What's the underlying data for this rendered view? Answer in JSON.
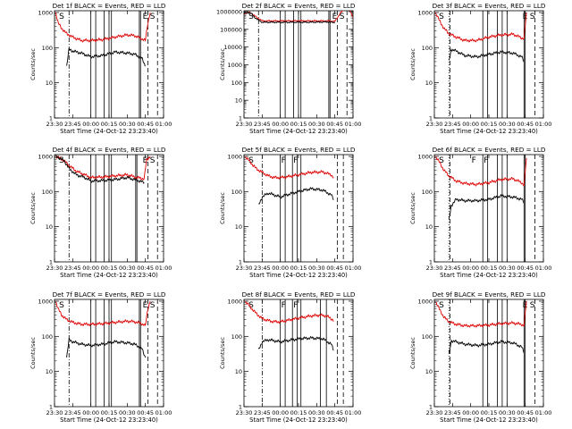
{
  "layout": {
    "x_tick_labels": [
      "23:30",
      "23:45",
      "00:00",
      "00:15",
      "00:30",
      "00:45",
      "01:00"
    ],
    "xlabel": "Start Time (24-Oct-12 23:23:40)",
    "ylabel": "Counts/sec"
  },
  "colors": {
    "events": "#000000",
    "lld": "#dd0000",
    "frame": "#000000"
  },
  "chart_data": [
    {
      "type": "line",
      "title": "Det 1f BLACK = Events, RED = LLD",
      "y_tick_labels": [
        "1",
        "10",
        "100",
        "1000"
      ],
      "ylim_log10": [
        0,
        3.05
      ],
      "xlim_minutes": [
        -30,
        60
      ],
      "x_ticks_minutes": [
        -30,
        -15,
        0,
        15,
        30,
        45,
        60
      ],
      "marker_letters": [
        {
          "t": -27,
          "text": "S"
        },
        {
          "t": 42,
          "text": "E"
        },
        {
          "t": 48,
          "text": "S"
        }
      ],
      "dashdot_lines": [
        -18
      ],
      "solid_lines": [
        0,
        4,
        11,
        15,
        17,
        40,
        41
      ],
      "dashed_lines": [
        47,
        55
      ],
      "series": [
        {
          "name": "LLD",
          "color": "#dd0000",
          "x": [
            -29,
            -27,
            -24,
            -20,
            -15,
            -8,
            0,
            10,
            20,
            30,
            36,
            42,
            45,
            47,
            49
          ],
          "values": [
            1000,
            500,
            350,
            250,
            200,
            160,
            160,
            170,
            200,
            230,
            220,
            180,
            160,
            500,
            1000
          ]
        },
        {
          "name": "Events",
          "color": "#000000",
          "x": [
            -20,
            -18,
            -15,
            -8,
            0,
            10,
            20,
            30,
            36,
            42,
            45
          ],
          "values": [
            30,
            90,
            80,
            70,
            55,
            60,
            75,
            70,
            65,
            50,
            30
          ]
        }
      ]
    },
    {
      "type": "line",
      "title": "Det 2f BLACK = Events, RED = LLD",
      "y_tick_labels": [
        "1",
        "10",
        "100",
        "1000",
        "10000",
        "100000",
        "1000000"
      ],
      "ylim_log10": [
        0,
        6.05
      ],
      "xlim_minutes": [
        -30,
        60
      ],
      "x_ticks_minutes": [
        -30,
        -15,
        0,
        15,
        30,
        45,
        60
      ],
      "marker_letters": [
        {
          "t": -27,
          "text": "S"
        },
        {
          "t": 42,
          "text": "E"
        },
        {
          "t": 48,
          "text": "S"
        }
      ],
      "dashdot_lines": [
        -18
      ],
      "solid_lines": [
        0,
        4,
        11,
        15,
        17,
        40,
        41
      ],
      "dashed_lines": [
        47,
        55
      ],
      "series": [
        {
          "name": "LLD",
          "color": "#dd0000",
          "x": [
            -30,
            -25,
            -20,
            -15,
            0,
            20,
            40,
            45,
            50,
            56,
            60
          ],
          "values": [
            800000,
            900000,
            500000,
            300000,
            300000,
            300000,
            300000,
            280000,
            900000,
            2000000,
            500000
          ]
        },
        {
          "name": "Events",
          "color": "#000000",
          "x": [
            -30,
            -25,
            -20,
            -15,
            0,
            20,
            40,
            45
          ],
          "values": [
            800000,
            900000,
            400000,
            250000,
            250000,
            250000,
            260000,
            240000
          ]
        }
      ]
    },
    {
      "type": "line",
      "title": "Det 3f BLACK = Events, RED = LLD",
      "y_tick_labels": [
        "1",
        "10",
        "100",
        "1000"
      ],
      "ylim_log10": [
        0,
        3.05
      ],
      "xlim_minutes": [
        -30,
        60
      ],
      "x_ticks_minutes": [
        -30,
        -15,
        0,
        15,
        30,
        45,
        60
      ],
      "marker_letters": [
        {
          "t": -27,
          "text": "S"
        },
        {
          "t": 42,
          "text": "E"
        },
        {
          "t": 48,
          "text": "S"
        }
      ],
      "dashdot_lines": [],
      "solid_lines": [
        10,
        14,
        22,
        26,
        30,
        44,
        45
      ],
      "dashed_lines": [
        -17,
        53
      ],
      "dotted_lines": [
        -18
      ],
      "series": [
        {
          "name": "LLD",
          "color": "#dd0000",
          "x": [
            -29,
            -26,
            -22,
            -18,
            -12,
            -5,
            5,
            15,
            25,
            35,
            42,
            44,
            46
          ],
          "values": [
            1000,
            600,
            350,
            250,
            200,
            160,
            160,
            200,
            230,
            240,
            190,
            180,
            1000
          ]
        },
        {
          "name": "Events",
          "color": "#000000",
          "x": [
            -18,
            -16,
            -12,
            -5,
            5,
            15,
            25,
            35,
            42,
            44
          ],
          "values": [
            40,
            90,
            80,
            60,
            55,
            65,
            75,
            70,
            55,
            40
          ]
        }
      ]
    },
    {
      "type": "line",
      "title": "Det 4f BLACK = Events, RED = LLD",
      "y_tick_labels": [
        "1",
        "10",
        "100",
        "1000"
      ],
      "ylim_log10": [
        0,
        3.05
      ],
      "xlim_minutes": [
        -30,
        60
      ],
      "x_ticks_minutes": [
        -30,
        -15,
        0,
        15,
        30,
        45,
        60
      ],
      "marker_letters": [
        {
          "t": -27,
          "text": "S"
        },
        {
          "t": 42,
          "text": "E"
        },
        {
          "t": 48,
          "text": "S"
        }
      ],
      "dashdot_lines": [
        -18
      ],
      "solid_lines": [
        0,
        4,
        11,
        15,
        17,
        37,
        38
      ],
      "dashed_lines": [
        47,
        55
      ],
      "series": [
        {
          "name": "LLD",
          "color": "#dd0000",
          "x": [
            -29,
            -26,
            -22,
            -18,
            -12,
            -5,
            0,
            10,
            20,
            30,
            38,
            44,
            46,
            49
          ],
          "values": [
            1000,
            900,
            750,
            550,
            380,
            300,
            250,
            260,
            280,
            300,
            250,
            230,
            800,
            1000
          ]
        },
        {
          "name": "Events",
          "color": "#000000",
          "x": [
            -29,
            -26,
            -22,
            -18,
            -12,
            -5,
            0,
            10,
            20,
            30,
            38,
            44
          ],
          "values": [
            1000,
            900,
            750,
            450,
            300,
            250,
            200,
            205,
            220,
            250,
            210,
            180
          ]
        }
      ]
    },
    {
      "type": "line",
      "title": "Det 5f BLACK = Events, RED = LLD",
      "y_tick_labels": [
        "1",
        "10",
        "100",
        "1000"
      ],
      "ylim_log10": [
        0,
        3.05
      ],
      "xlim_minutes": [
        -30,
        60
      ],
      "x_ticks_minutes": [
        -30,
        -15,
        0,
        15,
        30,
        45,
        60
      ],
      "marker_letters": [
        {
          "t": -27,
          "text": "S"
        },
        {
          "t": 0,
          "text": "F"
        },
        {
          "t": 10,
          "text": "F"
        }
      ],
      "dashdot_lines": [
        -15
      ],
      "solid_lines": [
        0,
        4,
        10,
        14,
        17
      ],
      "dashed_lines": [
        47,
        52
      ],
      "series": [
        {
          "name": "LLD",
          "color": "#dd0000",
          "x": [
            -29,
            -25,
            -20,
            -15,
            -10,
            -5,
            0,
            5,
            15,
            25,
            35,
            42,
            44
          ],
          "values": [
            1000,
            700,
            450,
            350,
            280,
            250,
            250,
            260,
            300,
            350,
            360,
            300,
            250
          ]
        },
        {
          "name": "Events",
          "color": "#000000",
          "x": [
            -18,
            -15,
            -10,
            -5,
            0,
            5,
            15,
            25,
            35,
            42,
            44
          ],
          "values": [
            40,
            70,
            90,
            80,
            70,
            80,
            100,
            120,
            110,
            80,
            60
          ]
        }
      ]
    },
    {
      "type": "line",
      "title": "Det 6f BLACK = Events, RED = LLD",
      "y_tick_labels": [
        "1",
        "10",
        "100",
        "1000"
      ],
      "ylim_log10": [
        0,
        3.05
      ],
      "xlim_minutes": [
        -30,
        60
      ],
      "x_ticks_minutes": [
        -30,
        -15,
        0,
        15,
        30,
        45,
        60
      ],
      "marker_letters": [
        {
          "t": -27,
          "text": "S"
        },
        {
          "t": 0,
          "text": "F"
        },
        {
          "t": 10,
          "text": "F"
        }
      ],
      "dashdot_lines": [],
      "solid_lines": [
        10,
        14,
        22,
        26,
        30,
        44,
        45
      ],
      "dashed_lines": [
        -17,
        53
      ],
      "dotted_lines": [
        -18
      ],
      "series": [
        {
          "name": "LLD",
          "color": "#dd0000",
          "x": [
            -29,
            -26,
            -22,
            -18,
            -12,
            -5,
            5,
            15,
            25,
            35,
            42,
            44,
            46
          ],
          "values": [
            1000,
            700,
            400,
            280,
            200,
            170,
            160,
            180,
            220,
            230,
            180,
            150,
            900
          ]
        },
        {
          "name": "Events",
          "color": "#000000",
          "x": [
            -18,
            -16,
            -12,
            -5,
            5,
            15,
            25,
            35,
            42,
            44
          ],
          "values": [
            15,
            40,
            60,
            55,
            55,
            60,
            75,
            70,
            60,
            50
          ]
        }
      ]
    },
    {
      "type": "line",
      "title": "Det 7f BLACK = Events, RED = LLD",
      "y_tick_labels": [
        "1",
        "10",
        "100",
        "1000"
      ],
      "ylim_log10": [
        0,
        3.05
      ],
      "xlim_minutes": [
        -30,
        60
      ],
      "x_ticks_minutes": [
        -30,
        -15,
        0,
        15,
        30,
        45,
        60
      ],
      "marker_letters": [
        {
          "t": -27,
          "text": "S"
        },
        {
          "t": 42,
          "text": "E"
        },
        {
          "t": 48,
          "text": "S"
        }
      ],
      "dashdot_lines": [
        -18
      ],
      "solid_lines": [
        0,
        4,
        11,
        15,
        17,
        40,
        41
      ],
      "dashed_lines": [
        47,
        55
      ],
      "series": [
        {
          "name": "LLD",
          "color": "#dd0000",
          "x": [
            -29,
            -27,
            -24,
            -20,
            -15,
            -8,
            0,
            10,
            20,
            30,
            36,
            42,
            45,
            47,
            49
          ],
          "values": [
            1000,
            600,
            400,
            300,
            250,
            220,
            220,
            230,
            250,
            270,
            260,
            230,
            200,
            600,
            1000
          ]
        },
        {
          "name": "Events",
          "color": "#000000",
          "x": [
            -20,
            -18,
            -15,
            -8,
            0,
            10,
            20,
            30,
            36,
            42,
            45
          ],
          "values": [
            25,
            80,
            70,
            60,
            55,
            60,
            70,
            65,
            60,
            45,
            25
          ]
        }
      ]
    },
    {
      "type": "line",
      "title": "Det 8f BLACK = Events, RED = LLD",
      "y_tick_labels": [
        "1",
        "10",
        "100",
        "1000"
      ],
      "ylim_log10": [
        0,
        3.05
      ],
      "xlim_minutes": [
        -30,
        60
      ],
      "x_ticks_minutes": [
        -30,
        -15,
        0,
        15,
        30,
        45,
        60
      ],
      "marker_letters": [
        {
          "t": -27,
          "text": "S"
        },
        {
          "t": 0,
          "text": "F"
        },
        {
          "t": 10,
          "text": "F"
        }
      ],
      "dashdot_lines": [
        -15
      ],
      "solid_lines": [
        0,
        4,
        10,
        14,
        17,
        33,
        38
      ],
      "dashed_lines": [
        47,
        52
      ],
      "series": [
        {
          "name": "LLD",
          "color": "#dd0000",
          "x": [
            -29,
            -25,
            -20,
            -15,
            -10,
            -5,
            0,
            5,
            15,
            25,
            33,
            38,
            42,
            44
          ],
          "values": [
            1000,
            700,
            450,
            320,
            280,
            260,
            260,
            280,
            330,
            380,
            400,
            380,
            320,
            280
          ]
        },
        {
          "name": "Events",
          "color": "#000000",
          "x": [
            -18,
            -15,
            -10,
            -5,
            0,
            5,
            15,
            25,
            35,
            42,
            44
          ],
          "values": [
            40,
            70,
            80,
            75,
            70,
            75,
            85,
            90,
            85,
            60,
            40
          ]
        }
      ]
    },
    {
      "type": "line",
      "title": "Det 9f BLACK = Events, RED = LLD",
      "y_tick_labels": [
        "1",
        "10",
        "100",
        "1000"
      ],
      "ylim_log10": [
        0,
        3.05
      ],
      "xlim_minutes": [
        -30,
        60
      ],
      "x_ticks_minutes": [
        -30,
        -15,
        0,
        15,
        30,
        45,
        60
      ],
      "marker_letters": [
        {
          "t": -27,
          "text": "S"
        },
        {
          "t": 42,
          "text": "E"
        },
        {
          "t": 48,
          "text": "S"
        }
      ],
      "dashdot_lines": [],
      "solid_lines": [
        10,
        14,
        22,
        26,
        30,
        44,
        45
      ],
      "dashed_lines": [
        -17,
        53
      ],
      "dotted_lines": [
        -18
      ],
      "series": [
        {
          "name": "LLD",
          "color": "#dd0000",
          "x": [
            -29,
            -26,
            -22,
            -18,
            -12,
            -5,
            5,
            15,
            25,
            35,
            42,
            44,
            46
          ],
          "values": [
            1000,
            600,
            350,
            260,
            220,
            200,
            200,
            210,
            230,
            240,
            220,
            200,
            1000
          ]
        },
        {
          "name": "Events",
          "color": "#000000",
          "x": [
            -18,
            -16,
            -12,
            -5,
            5,
            15,
            25,
            35,
            42,
            44
          ],
          "values": [
            30,
            75,
            70,
            60,
            55,
            60,
            70,
            65,
            50,
            35
          ]
        }
      ]
    }
  ]
}
